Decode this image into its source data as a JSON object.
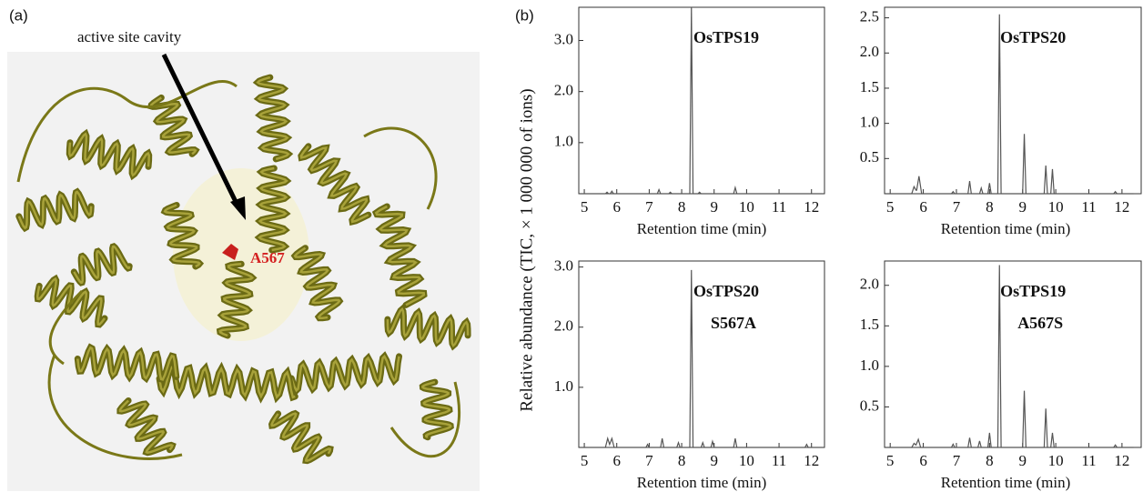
{
  "panel_labels": [
    "(a)",
    "(b)"
  ],
  "annotations": {
    "cavity": "active site cavity",
    "residue": "A567"
  },
  "shared_y_label": "Relative abundance (TIC, × 1 000 000 of ions)",
  "chart_data": [
    {
      "type": "line",
      "title": "OsTPS19",
      "x_label": "Retention time (min)",
      "color": "#555555",
      "xlim": [
        4.83,
        12.4
      ],
      "xticks": [
        5,
        6,
        7,
        8,
        9,
        10,
        11,
        12
      ],
      "ylim": [
        0,
        3.65
      ],
      "yticks": [
        {
          "value": 1,
          "label": "1.0"
        },
        {
          "value": 2,
          "label": "2.0"
        },
        {
          "value": 3,
          "label": "3.0"
        }
      ],
      "x": [
        4.85,
        5.65,
        5.7,
        5.75,
        5.8,
        5.85,
        5.9,
        7.25,
        7.3,
        7.35,
        7.6,
        7.65,
        7.7,
        8.25,
        8.3,
        8.35,
        8.5,
        8.55,
        8.6,
        9.6,
        9.65,
        9.7,
        12.35
      ],
      "values": [
        0,
        0,
        0.03,
        0,
        0,
        0.05,
        0,
        0,
        0.08,
        0,
        0,
        0.03,
        0,
        0,
        3.65,
        0,
        0,
        0.03,
        0,
        0,
        0.12,
        0,
        0
      ]
    },
    {
      "type": "line",
      "title": "OsTPS20",
      "x_label": "Retention time (min)",
      "color": "#555555",
      "xlim": [
        4.83,
        12.58
      ],
      "xticks": [
        5,
        6,
        7,
        8,
        9,
        10,
        11,
        12
      ],
      "ylim": [
        0,
        2.65
      ],
      "yticks": [
        0.5,
        {
          "value": 1,
          "label": "1.0"
        },
        1.5,
        {
          "value": 2,
          "label": "2.0"
        },
        2.5
      ],
      "x": [
        4.85,
        5.65,
        5.72,
        5.78,
        5.8,
        5.87,
        5.95,
        6.85,
        6.9,
        6.95,
        7.35,
        7.4,
        7.45,
        7.7,
        7.75,
        7.8,
        7.95,
        8.0,
        8.05,
        8.25,
        8.3,
        8.35,
        9.0,
        9.05,
        9.1,
        9.65,
        9.7,
        9.75,
        9.85,
        9.9,
        9.95,
        11.75,
        11.8,
        11.85,
        12.35
      ],
      "values": [
        0,
        0,
        0.1,
        0.05,
        0.05,
        0.25,
        0,
        0,
        0.03,
        0,
        0,
        0.18,
        0,
        0,
        0.08,
        0,
        0,
        0.15,
        0,
        0,
        2.55,
        0,
        0,
        0.85,
        0,
        0,
        0.4,
        0,
        0,
        0.35,
        0,
        0,
        0.03,
        0,
        0
      ]
    },
    {
      "type": "line",
      "title": "OsTPS20",
      "subtitle": "S567A",
      "x_label": "Retention time (min)",
      "color": "#555555",
      "xlim": [
        4.83,
        12.4
      ],
      "xticks": [
        5,
        6,
        7,
        8,
        9,
        10,
        11,
        12
      ],
      "ylim": [
        0,
        3.1
      ],
      "yticks": [
        {
          "value": 1,
          "label": "1.0"
        },
        {
          "value": 2,
          "label": "2.0"
        },
        {
          "value": 3,
          "label": "3.0"
        }
      ],
      "x": [
        4.85,
        5.65,
        5.72,
        5.78,
        5.85,
        5.92,
        6.9,
        6.95,
        7.0,
        7.35,
        7.4,
        7.45,
        7.85,
        7.9,
        7.95,
        8.25,
        8.3,
        8.35,
        8.6,
        8.65,
        8.7,
        8.9,
        8.95,
        9.0,
        9.6,
        9.65,
        9.7,
        11.8,
        11.85,
        11.9,
        12.35
      ],
      "values": [
        0,
        0,
        0.15,
        0.05,
        0.15,
        0,
        0,
        0.05,
        0,
        0,
        0.15,
        0,
        0,
        0.08,
        0,
        0,
        2.95,
        0,
        0,
        0.08,
        0,
        0,
        0.1,
        0,
        0,
        0.15,
        0,
        0,
        0.05,
        0,
        0
      ]
    },
    {
      "type": "line",
      "title": "OsTPS19",
      "subtitle": "A567S",
      "x_label": "Retention time (min)",
      "color": "#555555",
      "xlim": [
        4.83,
        12.58
      ],
      "xticks": [
        5,
        6,
        7,
        8,
        9,
        10,
        11,
        12
      ],
      "ylim": [
        0,
        2.3
      ],
      "yticks": [
        0.5,
        {
          "value": 1,
          "label": "1.0"
        },
        1.5,
        {
          "value": 2,
          "label": "2.0"
        }
      ],
      "x": [
        4.85,
        5.65,
        5.72,
        5.78,
        5.85,
        5.92,
        6.85,
        6.9,
        6.95,
        7.35,
        7.4,
        7.45,
        7.65,
        7.7,
        7.75,
        7.95,
        8.0,
        8.05,
        8.25,
        8.3,
        8.35,
        9.0,
        9.05,
        9.1,
        9.65,
        9.7,
        9.75,
        9.85,
        9.9,
        9.95,
        11.75,
        11.8,
        11.85,
        12.35
      ],
      "values": [
        0,
        0,
        0.05,
        0.03,
        0.1,
        0,
        0,
        0.04,
        0,
        0,
        0.12,
        0,
        0,
        0.08,
        0,
        0,
        0.18,
        0,
        0,
        2.25,
        0,
        0,
        0.7,
        0,
        0,
        0.48,
        0,
        0,
        0.18,
        0,
        0,
        0.03,
        0,
        0
      ]
    }
  ]
}
